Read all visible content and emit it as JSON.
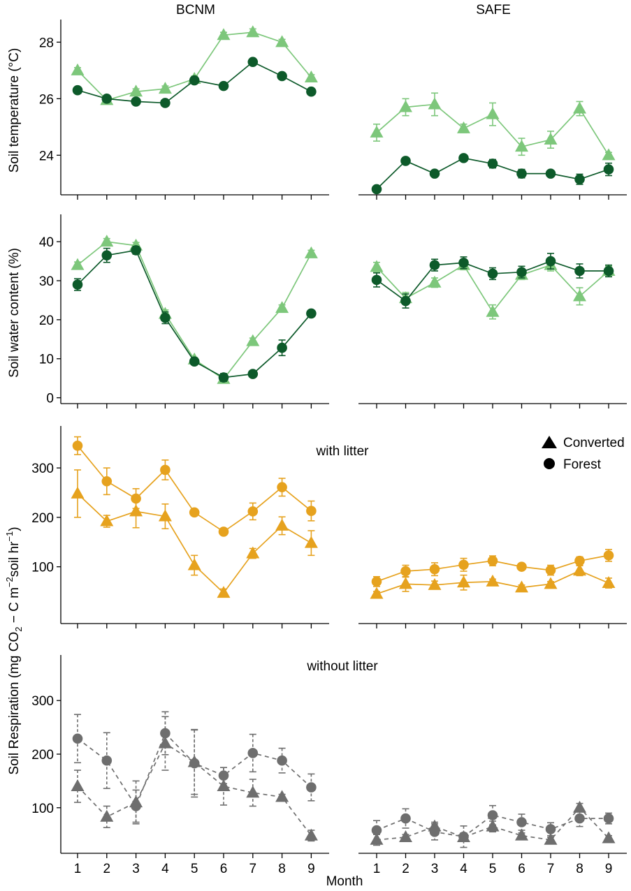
{
  "chart_data": {
    "type": "line",
    "strips": [
      "BCNM",
      "SAFE"
    ],
    "xlabel": "Month",
    "x": [
      1,
      2,
      3,
      4,
      5,
      6,
      7,
      8,
      9
    ],
    "colors": {
      "temp_converted": "#7dc77b",
      "temp_forest": "#0d5a2a",
      "litter": "#e6a21e",
      "nolitter": "#6e6e6e"
    },
    "legend": {
      "items": [
        {
          "label": "Converted",
          "marker": "triangle"
        },
        {
          "label": "Forest",
          "marker": "circle"
        }
      ],
      "position": "top-right of row 3"
    },
    "ylabel_temp": "Soil temperature (°C)",
    "ylabel_water": "Soil water content (%)",
    "ylabel_resp_line1": "Soil Respiration (mg CO",
    "ylabel_resp_sub2": "2",
    "ylabel_resp_mid": " − C m",
    "ylabel_resp_sup1": "−2",
    "ylabel_resp_mid2": "soil hr",
    "ylabel_resp_sup2": "−1",
    "ylabel_resp_end": ")",
    "annotation_with": "with litter",
    "annotation_without": "without litter",
    "panels": [
      {
        "id": "temp",
        "ylim": [
          22.6,
          28.8
        ],
        "yticks": [
          24,
          26,
          28
        ],
        "sites": {
          "BCNM": {
            "Converted": {
              "values": [
                27.0,
                25.95,
                26.25,
                26.35,
                26.7,
                28.25,
                28.35,
                28.0,
                26.75
              ],
              "errors": [
                0.1,
                0.1,
                0.1,
                0.1,
                0.1,
                0.1,
                0.12,
                0.1,
                0.1
              ]
            },
            "Forest": {
              "values": [
                26.3,
                26.0,
                25.9,
                25.85,
                26.65,
                26.45,
                27.3,
                26.8,
                26.25
              ],
              "errors": [
                0.1,
                0.1,
                0.08,
                0.08,
                0.1,
                0.08,
                0.1,
                0.1,
                0.08
              ]
            }
          },
          "SAFE": {
            "Converted": {
              "values": [
                24.8,
                25.7,
                25.8,
                24.95,
                25.45,
                24.3,
                24.55,
                25.65,
                24.0
              ],
              "errors": [
                0.3,
                0.3,
                0.4,
                0.15,
                0.4,
                0.3,
                0.3,
                0.25,
                0.1
              ]
            },
            "Forest": {
              "values": [
                22.8,
                23.8,
                23.35,
                23.9,
                23.7,
                23.35,
                23.35,
                23.15,
                23.5
              ],
              "errors": [
                0.1,
                0.12,
                0.1,
                0.1,
                0.15,
                0.15,
                0.1,
                0.18,
                0.22
              ]
            }
          }
        }
      },
      {
        "id": "water",
        "ylim": [
          -1.5,
          47
        ],
        "yticks": [
          0,
          10,
          20,
          30,
          40
        ],
        "sites": {
          "BCNM": {
            "Converted": {
              "values": [
                34.0,
                40.0,
                39.0,
                21.5,
                9.8,
                4.8,
                14.5,
                23.0,
                37.0
              ],
              "errors": [
                0.8,
                0.8,
                0.8,
                1.0,
                0.5,
                0.5,
                0.8,
                0.8,
                0.8
              ]
            },
            "Forest": {
              "values": [
                29.0,
                36.5,
                37.8,
                20.5,
                9.3,
                5.2,
                6.1,
                12.8,
                21.6
              ],
              "errors": [
                1.5,
                1.8,
                1.0,
                1.5,
                0.5,
                1.0,
                0.5,
                2.0,
                0.5
              ]
            }
          },
          "SAFE": {
            "Converted": {
              "values": [
                33.5,
                25.5,
                29.5,
                34.0,
                22.0,
                31.5,
                34.0,
                26.0,
                32.5
              ],
              "errors": [
                1.2,
                1.5,
                1.2,
                1.2,
                1.8,
                1.2,
                1.5,
                2.2,
                1.2
              ]
            },
            "Forest": {
              "values": [
                30.2,
                24.8,
                34.0,
                34.6,
                31.8,
                32.2,
                35.0,
                32.5,
                32.5
              ],
              "errors": [
                1.8,
                1.8,
                1.5,
                1.5,
                1.5,
                1.5,
                2.0,
                1.8,
                1.5
              ]
            }
          }
        }
      },
      {
        "id": "resp_litter",
        "ylim": [
          -15,
          385
        ],
        "yticks": [
          100,
          200,
          300
        ],
        "sites": {
          "BCNM": {
            "Converted": {
              "values": [
                248,
                192,
                212,
                202,
                103,
                47,
                127,
                183,
                148
              ],
              "errors": [
                48,
                12,
                33,
                25,
                20,
                8,
                10,
                18,
                25
              ]
            },
            "Forest": {
              "values": [
                345,
                273,
                238,
                296,
                210,
                171,
                212,
                261,
                213
              ],
              "errors": [
                18,
                27,
                20,
                20,
                5,
                5,
                17,
                18,
                20
              ]
            }
          },
          "SAFE": {
            "Converted": {
              "values": [
                45,
                65,
                63,
                68,
                70,
                58,
                65,
                92,
                67
              ],
              "errors": [
                5,
                15,
                8,
                15,
                5,
                5,
                5,
                10,
                10
              ]
            },
            "Forest": {
              "values": [
                70,
                91,
                95,
                104,
                112,
                100,
                93,
                112,
                123
              ],
              "errors": [
                10,
                12,
                13,
                13,
                10,
                5,
                10,
                8,
                12
              ]
            }
          }
        }
      },
      {
        "id": "resp_nolitter",
        "ylim": [
          15,
          385
        ],
        "yticks": [
          100,
          200,
          300
        ],
        "sites": {
          "BCNM": {
            "Converted": {
              "values": [
                140,
                83,
                110,
                220,
                185,
                140,
                128,
                120,
                48
              ],
              "errors": [
                30,
                20,
                40,
                50,
                60,
                35,
                25,
                5,
                10
              ]
            },
            "Forest": {
              "values": [
                229,
                188,
                103,
                239,
                183,
                160,
                202,
                188,
                138
              ],
              "errors": [
                45,
                52,
                30,
                40,
                63,
                15,
                35,
                23,
                25
              ]
            }
          },
          "SAFE": {
            "Converted": {
              "values": [
                40,
                45,
                65,
                45,
                65,
                48,
                40,
                100,
                43
              ],
              "errors": [
                10,
                5,
                8,
                8,
                10,
                5,
                5,
                8,
                5
              ]
            },
            "Forest": {
              "values": [
                58,
                80,
                55,
                46,
                86,
                73,
                60,
                80,
                80
              ],
              "errors": [
                18,
                18,
                15,
                20,
                18,
                15,
                12,
                15,
                10
              ]
            }
          }
        }
      }
    ]
  }
}
